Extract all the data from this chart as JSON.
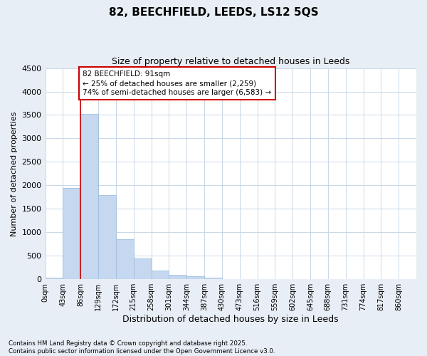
{
  "title_line1": "82, BEECHFIELD, LEEDS, LS12 5QS",
  "title_line2": "Size of property relative to detached houses in Leeds",
  "xlabel": "Distribution of detached houses by size in Leeds",
  "ylabel": "Number of detached properties",
  "categories": [
    "0sqm",
    "43sqm",
    "86sqm",
    "129sqm",
    "172sqm",
    "215sqm",
    "258sqm",
    "301sqm",
    "344sqm",
    "387sqm",
    "430sqm",
    "473sqm",
    "516sqm",
    "559sqm",
    "602sqm",
    "645sqm",
    "688sqm",
    "731sqm",
    "774sqm",
    "817sqm",
    "860sqm"
  ],
  "bar_values": [
    30,
    1950,
    3520,
    1800,
    860,
    450,
    180,
    100,
    60,
    30,
    5,
    0,
    0,
    0,
    0,
    0,
    0,
    0,
    0,
    0,
    0
  ],
  "bar_color": "#c5d8f0",
  "bar_edge_color": "#a0bedd",
  "vline_x": 2.0,
  "vline_color": "#cc0000",
  "ylim": [
    0,
    4500
  ],
  "yticks": [
    0,
    500,
    1000,
    1500,
    2000,
    2500,
    3000,
    3500,
    4000,
    4500
  ],
  "annotation_text": "82 BEECHFIELD: 91sqm\n← 25% of detached houses are smaller (2,259)\n74% of semi-detached houses are larger (6,583) →",
  "annotation_box_color": "#cc0000",
  "footnote": "Contains HM Land Registry data © Crown copyright and database right 2025.\nContains public sector information licensed under the Open Government Licence v3.0.",
  "bg_color": "#e8eef5",
  "plot_bg_color": "#ffffff",
  "grid_color": "#c8d8e8"
}
